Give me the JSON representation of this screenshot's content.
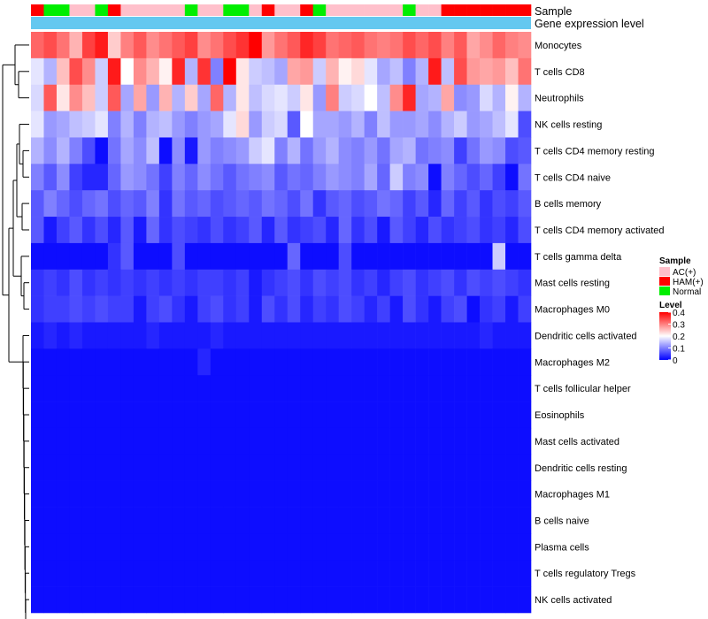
{
  "chart_data": {
    "type": "heatmap",
    "title": "",
    "annotation_labels": {
      "sample": "Sample",
      "expression": "Gene expression level"
    },
    "sample_legend": {
      "title": "Sample",
      "entries": [
        {
          "label": "AC(+)",
          "color": "#ffc0cb"
        },
        {
          "label": "HAM(+)",
          "color": "#ff0000"
        },
        {
          "label": "Normal",
          "color": "#00ee00"
        }
      ]
    },
    "level_legend": {
      "title": "Level",
      "ticks": [
        "0.4",
        "0.3",
        "0.2",
        "0.1",
        "0"
      ],
      "tick_values": [
        0.4,
        0.3,
        0.2,
        0.1,
        0
      ],
      "range": [
        0,
        0.4
      ],
      "colors": {
        "low": "#0000ff",
        "mid": "#ffffff",
        "high": "#ff0000"
      }
    },
    "expression_bar_color": "#64c8f0",
    "sample_groups": [
      "HAM(+)",
      "Normal",
      "Normal",
      "AC(+)",
      "AC(+)",
      "Normal",
      "HAM(+)",
      "AC(+)",
      "AC(+)",
      "AC(+)",
      "AC(+)",
      "AC(+)",
      "Normal",
      "AC(+)",
      "AC(+)",
      "Normal",
      "Normal",
      "AC(+)",
      "HAM(+)",
      "AC(+)",
      "AC(+)",
      "HAM(+)",
      "Normal",
      "AC(+)",
      "AC(+)",
      "AC(+)",
      "AC(+)",
      "AC(+)",
      "AC(+)",
      "Normal",
      "AC(+)",
      "AC(+)",
      "HAM(+)",
      "HAM(+)",
      "HAM(+)",
      "HAM(+)",
      "HAM(+)",
      "HAM(+)",
      "HAM(+)"
    ],
    "rows": [
      {
        "name": "Monocytes",
        "values": [
          0.32,
          0.34,
          0.31,
          0.26,
          0.35,
          0.38,
          0.24,
          0.3,
          0.33,
          0.29,
          0.31,
          0.33,
          0.35,
          0.29,
          0.31,
          0.34,
          0.36,
          0.4,
          0.28,
          0.31,
          0.33,
          0.37,
          0.35,
          0.31,
          0.32,
          0.33,
          0.31,
          0.3,
          0.31,
          0.34,
          0.32,
          0.34,
          0.3,
          0.33,
          0.27,
          0.29,
          0.32,
          0.3,
          0.29
        ]
      },
      {
        "name": "T cells CD8",
        "values": [
          0.18,
          0.14,
          0.25,
          0.34,
          0.29,
          0.16,
          0.38,
          0.2,
          0.29,
          0.26,
          0.21,
          0.37,
          0.14,
          0.36,
          0.1,
          0.4,
          0.22,
          0.16,
          0.15,
          0.13,
          0.27,
          0.28,
          0.16,
          0.26,
          0.21,
          0.23,
          0.18,
          0.13,
          0.15,
          0.1,
          0.14,
          0.38,
          0.15,
          0.34,
          0.28,
          0.27,
          0.28,
          0.25,
          0.31
        ]
      },
      {
        "name": "Neutrophils",
        "values": [
          0.17,
          0.33,
          0.22,
          0.29,
          0.25,
          0.16,
          0.33,
          0.13,
          0.27,
          0.12,
          0.26,
          0.14,
          0.24,
          0.13,
          0.32,
          0.14,
          0.22,
          0.15,
          0.17,
          0.18,
          0.16,
          0.22,
          0.12,
          0.3,
          0.16,
          0.17,
          0.2,
          0.15,
          0.29,
          0.37,
          0.13,
          0.14,
          0.27,
          0.11,
          0.12,
          0.17,
          0.14,
          0.21,
          0.14
        ]
      },
      {
        "name": "NK cells resting",
        "values": [
          0.18,
          0.12,
          0.13,
          0.15,
          0.16,
          0.18,
          0.1,
          0.14,
          0.1,
          0.14,
          0.15,
          0.12,
          0.1,
          0.12,
          0.13,
          0.18,
          0.23,
          0.12,
          0.16,
          0.17,
          0.07,
          0.2,
          0.13,
          0.13,
          0.12,
          0.14,
          0.1,
          0.15,
          0.12,
          0.12,
          0.13,
          0.11,
          0.14,
          0.16,
          0.12,
          0.13,
          0.15,
          0.18,
          0.06
        ]
      },
      {
        "name": "T cells CD4 memory resting",
        "values": [
          0.14,
          0.11,
          0.14,
          0.1,
          0.06,
          0.01,
          0.09,
          0.13,
          0.11,
          0.15,
          0.01,
          0.11,
          0.02,
          0.12,
          0.1,
          0.11,
          0.12,
          0.16,
          0.18,
          0.1,
          0.14,
          0.09,
          0.12,
          0.14,
          0.11,
          0.1,
          0.12,
          0.09,
          0.13,
          0.14,
          0.09,
          0.1,
          0.11,
          0.05,
          0.09,
          0.12,
          0.11,
          0.06,
          0.07
        ]
      },
      {
        "name": "T cells CD4 naive",
        "values": [
          0.1,
          0.07,
          0.11,
          0.05,
          0.03,
          0.03,
          0.08,
          0.12,
          0.11,
          0.09,
          0.05,
          0.1,
          0.08,
          0.11,
          0.09,
          0.07,
          0.09,
          0.1,
          0.11,
          0.07,
          0.09,
          0.08,
          0.1,
          0.12,
          0.11,
          0.1,
          0.13,
          0.08,
          0.16,
          0.1,
          0.11,
          0.01,
          0.1,
          0.08,
          0.06,
          0.08,
          0.05,
          0.01,
          0.09
        ]
      },
      {
        "name": "B cells memory",
        "values": [
          0.07,
          0.1,
          0.08,
          0.06,
          0.08,
          0.09,
          0.06,
          0.08,
          0.07,
          0.1,
          0.04,
          0.09,
          0.07,
          0.08,
          0.06,
          0.07,
          0.08,
          0.07,
          0.09,
          0.08,
          0.06,
          0.09,
          0.04,
          0.07,
          0.08,
          0.06,
          0.07,
          0.09,
          0.08,
          0.05,
          0.07,
          0.03,
          0.08,
          0.05,
          0.07,
          0.04,
          0.06,
          0.05,
          0.07
        ]
      },
      {
        "name": "T cells CD4 memory activated",
        "values": [
          0.07,
          0.02,
          0.05,
          0.07,
          0.04,
          0.06,
          0.03,
          0.07,
          0.02,
          0.08,
          0.04,
          0.06,
          0.05,
          0.04,
          0.06,
          0.04,
          0.05,
          0.07,
          0.03,
          0.07,
          0.04,
          0.05,
          0.06,
          0.03,
          0.08,
          0.04,
          0.06,
          0.02,
          0.07,
          0.05,
          0.03,
          0.06,
          0.04,
          0.05,
          0.06,
          0.04,
          0.05,
          0.03,
          0.06
        ]
      },
      {
        "name": "T cells gamma delta",
        "values": [
          0.01,
          0.01,
          0.01,
          0.01,
          0.01,
          0.01,
          0.04,
          0.07,
          0.01,
          0.01,
          0.01,
          0.06,
          0.01,
          0.01,
          0.01,
          0.01,
          0.01,
          0.01,
          0.01,
          0.01,
          0.08,
          0.01,
          0.01,
          0.01,
          0.06,
          0.01,
          0.01,
          0.01,
          0.01,
          0.01,
          0.01,
          0.01,
          0.01,
          0.01,
          0.01,
          0.01,
          0.16,
          0.01,
          0.01
        ]
      },
      {
        "name": "Mast cells resting",
        "values": [
          0.04,
          0.05,
          0.04,
          0.06,
          0.04,
          0.05,
          0.04,
          0.05,
          0.04,
          0.05,
          0.04,
          0.05,
          0.04,
          0.05,
          0.05,
          0.04,
          0.05,
          0.02,
          0.04,
          0.05,
          0.06,
          0.04,
          0.06,
          0.05,
          0.06,
          0.04,
          0.05,
          0.03,
          0.05,
          0.06,
          0.04,
          0.05,
          0.06,
          0.04,
          0.06,
          0.05,
          0.06,
          0.05,
          0.04
        ]
      },
      {
        "name": "Macrophages M0",
        "values": [
          0.04,
          0.05,
          0.05,
          0.06,
          0.05,
          0.06,
          0.05,
          0.05,
          0.02,
          0.05,
          0.06,
          0.04,
          0.02,
          0.05,
          0.06,
          0.04,
          0.05,
          0.02,
          0.06,
          0.04,
          0.06,
          0.03,
          0.05,
          0.04,
          0.06,
          0.05,
          0.03,
          0.05,
          0.02,
          0.06,
          0.04,
          0.02,
          0.05,
          0.06,
          0.01,
          0.04,
          0.05,
          0.02,
          0.05
        ]
      },
      {
        "name": "Dendritic cells activated",
        "values": [
          0.02,
          0.03,
          0.02,
          0.03,
          0.02,
          0.02,
          0.02,
          0.02,
          0.02,
          0.03,
          0.02,
          0.02,
          0.02,
          0.02,
          0.03,
          0.02,
          0.02,
          0.02,
          0.02,
          0.02,
          0.02,
          0.02,
          0.02,
          0.02,
          0.02,
          0.02,
          0.02,
          0.02,
          0.02,
          0.02,
          0.02,
          0.02,
          0.02,
          0.02,
          0.02,
          0.03,
          0.02,
          0.02,
          0.02
        ]
      },
      {
        "name": "Macrophages M2",
        "values": [
          0.01,
          0.01,
          0.01,
          0.01,
          0.01,
          0.01,
          0.01,
          0.01,
          0.01,
          0.01,
          0.01,
          0.01,
          0.01,
          0.03,
          0.01,
          0.01,
          0.01,
          0.01,
          0.01,
          0.01,
          0.01,
          0.01,
          0.01,
          0.01,
          0.01,
          0.01,
          0.01,
          0.01,
          0.01,
          0.01,
          0.01,
          0.01,
          0.01,
          0.01,
          0.01,
          0.01,
          0.01,
          0.01,
          0.01
        ]
      },
      {
        "name": "T cells follicular helper",
        "values": [
          0.01,
          0.01,
          0.01,
          0.01,
          0.01,
          0.01,
          0.01,
          0.01,
          0.01,
          0.01,
          0.01,
          0.01,
          0.01,
          0.01,
          0.01,
          0.01,
          0.01,
          0.01,
          0.01,
          0.01,
          0.01,
          0.01,
          0.01,
          0.01,
          0.01,
          0.01,
          0.01,
          0.01,
          0.01,
          0.01,
          0.01,
          0.01,
          0.01,
          0.01,
          0.01,
          0.01,
          0.01,
          0.01,
          0.01
        ]
      },
      {
        "name": "Eosinophils",
        "values": [
          0.01,
          0.01,
          0.01,
          0.01,
          0.01,
          0.01,
          0.01,
          0.01,
          0.01,
          0.01,
          0.01,
          0.01,
          0.01,
          0.01,
          0.01,
          0.01,
          0.01,
          0.01,
          0.01,
          0.01,
          0.01,
          0.01,
          0.01,
          0.01,
          0.01,
          0.01,
          0.01,
          0.01,
          0.01,
          0.01,
          0.01,
          0.01,
          0.01,
          0.01,
          0.01,
          0.01,
          0.01,
          0.01,
          0.01
        ]
      },
      {
        "name": "Mast cells activated",
        "values": [
          0.01,
          0.01,
          0.01,
          0.01,
          0.01,
          0.01,
          0.01,
          0.01,
          0.01,
          0.01,
          0.01,
          0.01,
          0.01,
          0.01,
          0.01,
          0.01,
          0.01,
          0.01,
          0.01,
          0.01,
          0.01,
          0.01,
          0.01,
          0.01,
          0.01,
          0.01,
          0.01,
          0.01,
          0.01,
          0.01,
          0.01,
          0.01,
          0.01,
          0.01,
          0.01,
          0.01,
          0.01,
          0.01,
          0.01
        ]
      },
      {
        "name": "Dendritic cells resting",
        "values": [
          0.01,
          0.01,
          0.01,
          0.01,
          0.01,
          0.01,
          0.01,
          0.01,
          0.01,
          0.01,
          0.01,
          0.01,
          0.01,
          0.01,
          0.01,
          0.01,
          0.01,
          0.01,
          0.01,
          0.01,
          0.01,
          0.01,
          0.01,
          0.01,
          0.01,
          0.01,
          0.01,
          0.01,
          0.01,
          0.01,
          0.01,
          0.01,
          0.01,
          0.01,
          0.01,
          0.01,
          0.01,
          0.01,
          0.01
        ]
      },
      {
        "name": "Macrophages M1",
        "values": [
          0.01,
          0.01,
          0.01,
          0.01,
          0.01,
          0.01,
          0.01,
          0.01,
          0.01,
          0.01,
          0.01,
          0.01,
          0.01,
          0.01,
          0.01,
          0.01,
          0.01,
          0.01,
          0.01,
          0.01,
          0.01,
          0.01,
          0.01,
          0.01,
          0.01,
          0.01,
          0.01,
          0.01,
          0.01,
          0.01,
          0.01,
          0.01,
          0.01,
          0.01,
          0.01,
          0.01,
          0.01,
          0.01,
          0.01
        ]
      },
      {
        "name": "B cells naive",
        "values": [
          0.01,
          0.01,
          0.01,
          0.01,
          0.01,
          0.01,
          0.01,
          0.01,
          0.01,
          0.01,
          0.01,
          0.01,
          0.01,
          0.01,
          0.01,
          0.01,
          0.01,
          0.01,
          0.01,
          0.01,
          0.01,
          0.01,
          0.01,
          0.01,
          0.01,
          0.01,
          0.01,
          0.01,
          0.01,
          0.01,
          0.01,
          0.01,
          0.01,
          0.01,
          0.01,
          0.01,
          0.01,
          0.01,
          0.01
        ]
      },
      {
        "name": "Plasma cells",
        "values": [
          0.01,
          0.01,
          0.01,
          0.01,
          0.01,
          0.01,
          0.01,
          0.01,
          0.01,
          0.01,
          0.01,
          0.01,
          0.01,
          0.01,
          0.01,
          0.01,
          0.01,
          0.01,
          0.01,
          0.01,
          0.01,
          0.01,
          0.01,
          0.01,
          0.01,
          0.01,
          0.01,
          0.01,
          0.01,
          0.01,
          0.01,
          0.01,
          0.01,
          0.01,
          0.01,
          0.01,
          0.01,
          0.01,
          0.01
        ]
      },
      {
        "name": "T cells regulatory  Tregs",
        "values": [
          0.01,
          0.01,
          0.01,
          0.01,
          0.01,
          0.01,
          0.01,
          0.01,
          0.01,
          0.01,
          0.01,
          0.01,
          0.01,
          0.01,
          0.01,
          0.01,
          0.01,
          0.01,
          0.01,
          0.01,
          0.01,
          0.01,
          0.01,
          0.01,
          0.01,
          0.01,
          0.01,
          0.01,
          0.01,
          0.01,
          0.01,
          0.01,
          0.01,
          0.01,
          0.01,
          0.01,
          0.01,
          0.01,
          0.01
        ]
      },
      {
        "name": "NK cells activated",
        "values": [
          0.01,
          0.01,
          0.01,
          0.01,
          0.01,
          0.01,
          0.01,
          0.01,
          0.01,
          0.01,
          0.01,
          0.01,
          0.01,
          0.01,
          0.01,
          0.01,
          0.01,
          0.01,
          0.01,
          0.01,
          0.01,
          0.01,
          0.01,
          0.01,
          0.01,
          0.01,
          0.01,
          0.01,
          0.01,
          0.01,
          0.01,
          0.01,
          0.01,
          0.01,
          0.01,
          0.01,
          0.01,
          0.01,
          0.01
        ]
      }
    ]
  }
}
